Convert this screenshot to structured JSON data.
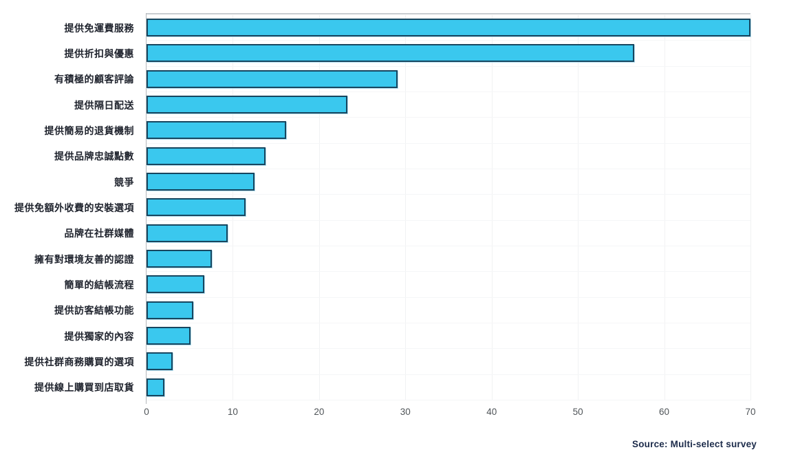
{
  "chart_data": {
    "type": "bar",
    "orientation": "horizontal",
    "title": "",
    "xlabel": "",
    "ylabel": "",
    "categories": [
      "提供免運費服務",
      "提供折扣與優惠",
      "有積極的顧客評論",
      "提供隔日配送",
      "提供簡易的退貨機制",
      "提供品牌忠誠點數",
      "競爭",
      "提供免額外收費的安裝選項",
      "品牌在社群媒體",
      "擁有對環境友善的認證",
      "簡單的結帳流程",
      "提供訪客結帳功能",
      "提供獨家的內容",
      "提供社群商務購買的選項",
      "提供線上購買到店取貨"
    ],
    "values": [
      70,
      56.5,
      29.1,
      23.3,
      16.2,
      13.8,
      12.5,
      11.5,
      9.4,
      7.6,
      6.7,
      5.4,
      5.1,
      3.0,
      2.1
    ],
    "xlim": [
      0,
      70
    ],
    "x_ticks": [
      0,
      10,
      20,
      30,
      40,
      50,
      60,
      70
    ],
    "grid": "light vertical gridlines at each x tick; light horizontal lines between category rows",
    "legend_position": "none",
    "bar_fill_color": "#3AC8EE",
    "bar_border_color": "#17465F",
    "source_note": "Source: Multi-select survey"
  }
}
